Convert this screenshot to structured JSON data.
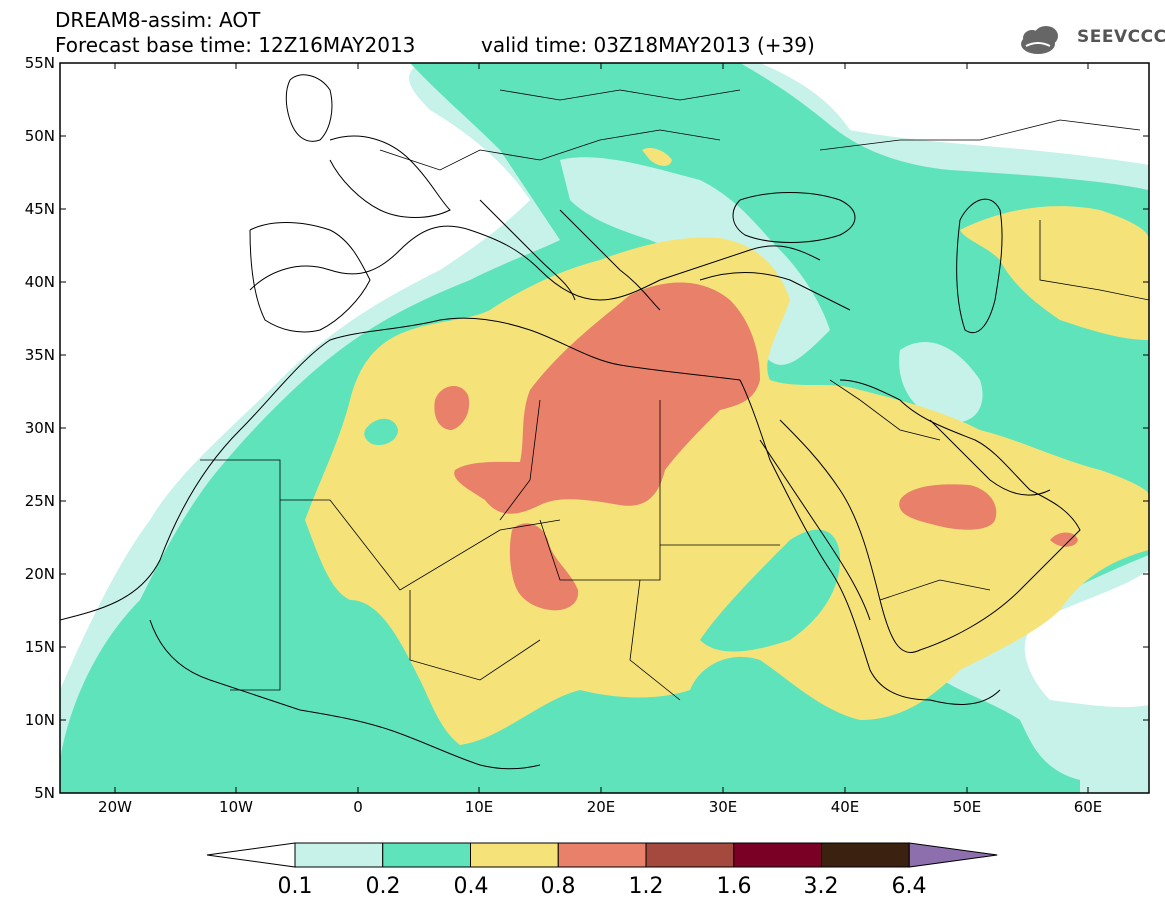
{
  "header": {
    "title_line1": "DREAM8-assim: AOT",
    "title_line2": "Forecast base time: 12Z16MAY2013",
    "valid_time": "valid time: 03Z18MAY2013 (+39)",
    "logo_text": "SEEVCCC"
  },
  "map": {
    "lat_labels": [
      "55N",
      "50N",
      "45N",
      "40N",
      "35N",
      "30N",
      "25N",
      "20N",
      "15N",
      "10N",
      "5N"
    ],
    "lon_labels": [
      "20W",
      "10W",
      "0",
      "10E",
      "20E",
      "30E",
      "40E",
      "50E",
      "60E"
    ],
    "region_color_legend": {
      "lightest": "#c6f2ea",
      "low": "#5fe3bb",
      "mid": "#f5e37a",
      "high": "#e8806a"
    }
  },
  "colorbar": {
    "tick_labels": [
      "0.1",
      "0.2",
      "0.4",
      "0.8",
      "1.2",
      "1.6",
      "3.2",
      "6.4"
    ],
    "colors": [
      "#ffffff",
      "#c6f2ea",
      "#5fe3bb",
      "#f5e37a",
      "#e8806a",
      "#a5483d",
      "#7b0026",
      "#3b2110",
      "#8e6fae"
    ]
  }
}
